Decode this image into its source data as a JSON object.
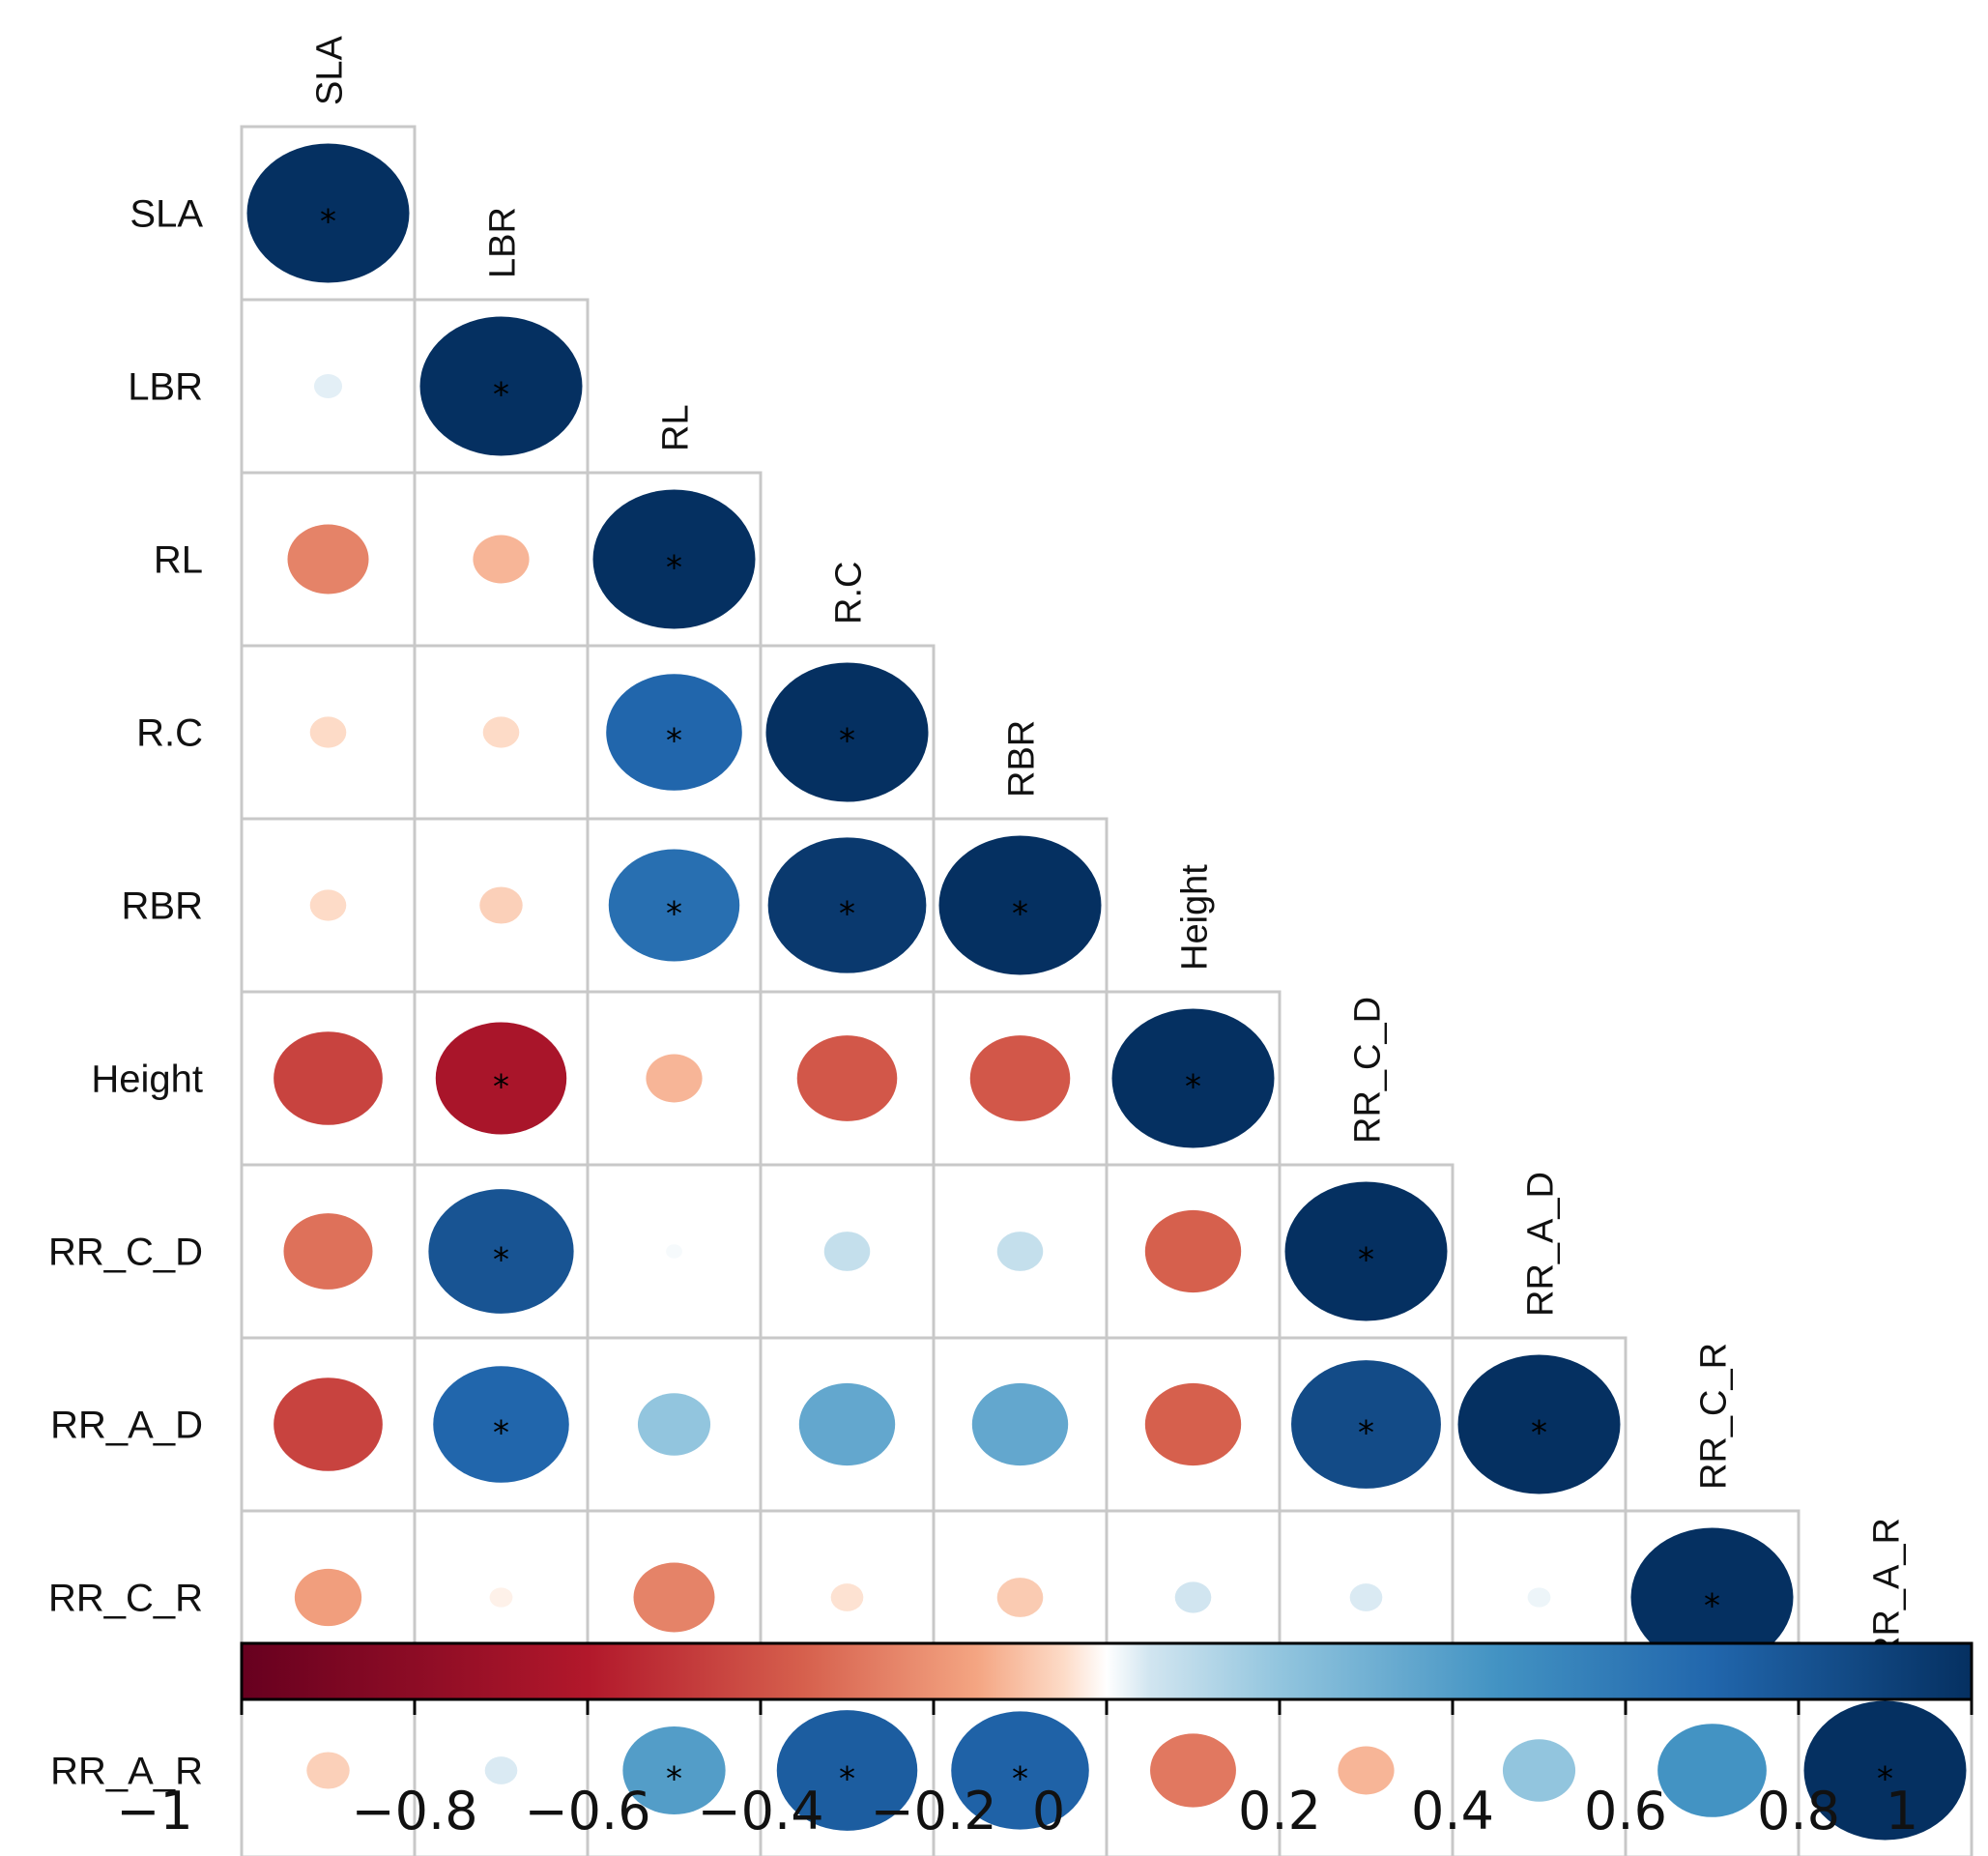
{
  "chart_data": {
    "type": "heatmap",
    "subtype": "correlation-circles-lower-triangle",
    "variables": [
      "SLA",
      "LBR",
      "RL",
      "R.C",
      "RBR",
      "Height",
      "RR_C_D",
      "RR_A_D",
      "RR_C_R",
      "RR_A_R"
    ],
    "matrix": [
      [
        1.0,
        0.03,
        -0.25,
        -0.05,
        -0.05,
        -0.45,
        -0.3,
        -0.45,
        -0.17,
        -0.07
      ],
      [
        0.03,
        1.0,
        -0.12,
        -0.05,
        -0.07,
        -0.65,
        0.8,
        0.7,
        -0.02,
        0.04
      ],
      [
        -0.25,
        -0.12,
        1.0,
        0.7,
        0.65,
        -0.12,
        0.01,
        0.2,
        -0.25,
        0.4
      ],
      [
        -0.05,
        -0.05,
        0.7,
        1.0,
        0.95,
        -0.38,
        0.08,
        0.35,
        -0.04,
        0.75
      ],
      [
        -0.05,
        -0.07,
        0.65,
        0.95,
        1.0,
        -0.38,
        0.08,
        0.35,
        -0.08,
        0.72
      ],
      [
        -0.45,
        -0.65,
        -0.12,
        -0.38,
        -0.38,
        1.0,
        -0.35,
        -0.35,
        0.05,
        -0.28
      ],
      [
        -0.3,
        0.8,
        0.01,
        0.08,
        0.08,
        -0.35,
        1.0,
        0.85,
        0.04,
        -0.12
      ],
      [
        -0.45,
        0.7,
        0.2,
        0.35,
        0.35,
        -0.35,
        0.85,
        1.0,
        0.02,
        0.2
      ],
      [
        -0.17,
        -0.02,
        -0.25,
        -0.04,
        -0.08,
        0.05,
        0.04,
        0.02,
        1.0,
        0.45
      ],
      [
        -0.07,
        0.04,
        0.4,
        0.75,
        0.72,
        -0.28,
        -0.12,
        0.2,
        0.45,
        1.0
      ]
    ],
    "significant": [
      [
        true,
        false,
        false,
        false,
        false,
        false,
        false,
        false,
        false,
        false
      ],
      [
        false,
        true,
        false,
        false,
        false,
        true,
        true,
        true,
        false,
        false
      ],
      [
        false,
        false,
        true,
        true,
        true,
        false,
        false,
        false,
        false,
        true
      ],
      [
        false,
        false,
        true,
        true,
        true,
        false,
        false,
        false,
        false,
        true
      ],
      [
        false,
        false,
        true,
        true,
        true,
        false,
        false,
        false,
        false,
        true
      ],
      [
        false,
        true,
        false,
        false,
        false,
        true,
        false,
        false,
        false,
        false
      ],
      [
        false,
        true,
        false,
        false,
        false,
        false,
        true,
        true,
        false,
        false
      ],
      [
        false,
        true,
        false,
        false,
        false,
        false,
        true,
        true,
        false,
        false
      ],
      [
        false,
        false,
        false,
        false,
        false,
        false,
        false,
        false,
        true,
        false
      ],
      [
        false,
        false,
        true,
        true,
        true,
        false,
        false,
        false,
        false,
        true
      ]
    ],
    "significance_marker": "*",
    "colorbar": {
      "range": [
        -1,
        1
      ],
      "ticks": [
        -1,
        -0.8,
        -0.6,
        -0.4,
        -0.2,
        0,
        0.2,
        0.4,
        0.6,
        0.8,
        1
      ],
      "tick_labels": [
        "−1",
        "−0.8",
        "−0.6",
        "−0.4",
        "−0.2",
        "0",
        "0.2",
        "0.4",
        "0.6",
        "0.8",
        "1"
      ],
      "orientation": "horizontal",
      "placement": "bottom"
    },
    "colors": {
      "neg_strong": "#67001f",
      "neg_mid": "#d6604d",
      "neg_light": "#fddbc7",
      "zero": "#ffffff",
      "pos_light": "#d1e5f0",
      "pos_mid": "#4393c3",
      "pos_strong": "#053061"
    }
  }
}
